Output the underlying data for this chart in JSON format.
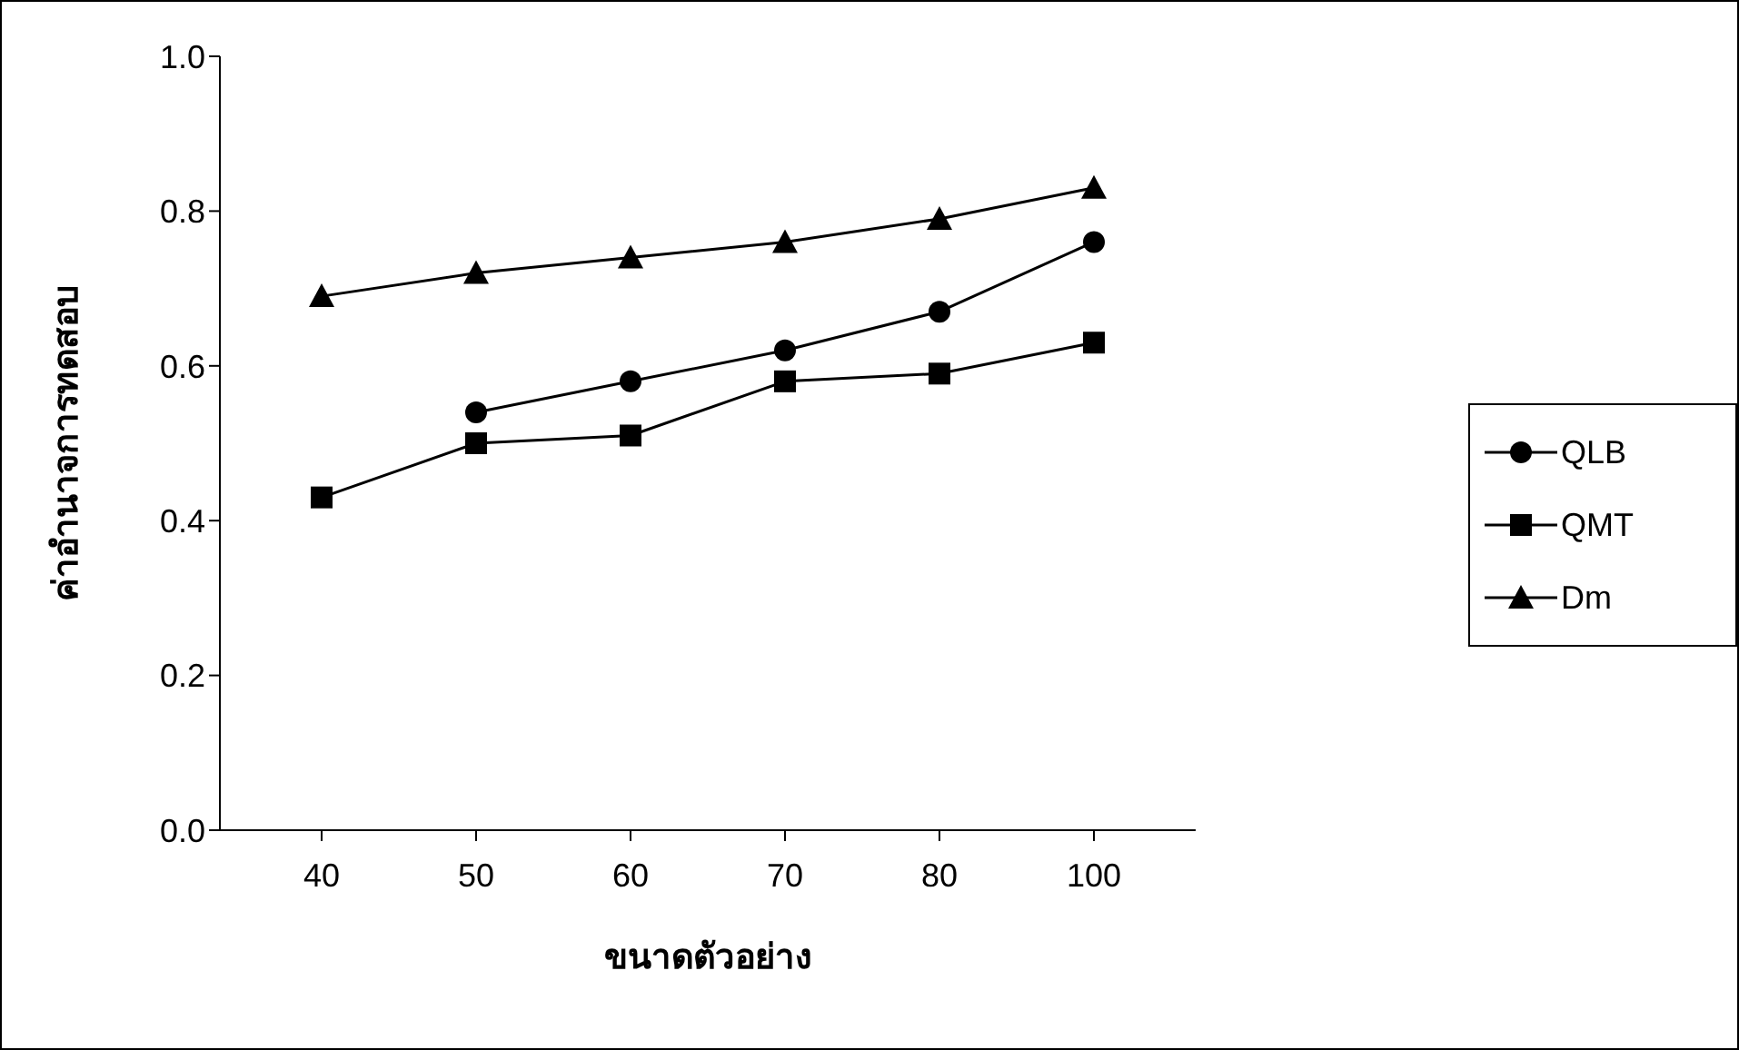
{
  "chart_data": {
    "type": "line",
    "xlabel": "ขนาดตัวอย่าง",
    "ylabel": "ค่าอำนาจการทดสอบ",
    "categories": [
      "40",
      "50",
      "60",
      "70",
      "80",
      "100"
    ],
    "series": [
      {
        "name": "QLB",
        "color": "#000000",
        "marker": "circle",
        "values": [
          null,
          0.54,
          0.58,
          0.62,
          0.67,
          0.76
        ]
      },
      {
        "name": "QMT",
        "color": "#000000",
        "marker": "square",
        "values": [
          0.43,
          0.5,
          0.51,
          0.58,
          0.59,
          0.63
        ]
      },
      {
        "name": "Dm",
        "color": "#000000",
        "marker": "triangle",
        "values": [
          0.69,
          0.72,
          0.74,
          0.76,
          0.79,
          0.83
        ]
      }
    ],
    "ylim": [
      0,
      1
    ],
    "yticks": [
      {
        "value": 0,
        "label": "0.0"
      },
      {
        "value": 0.2,
        "label": "0.2"
      },
      {
        "value": 0.4,
        "label": "0.4"
      },
      {
        "value": 0.6,
        "label": "0.6"
      },
      {
        "value": 0.8,
        "label": "0.8"
      },
      {
        "value": 1,
        "label": "1.0"
      }
    ],
    "grid": false,
    "legend": "right",
    "line_style": "solid"
  }
}
